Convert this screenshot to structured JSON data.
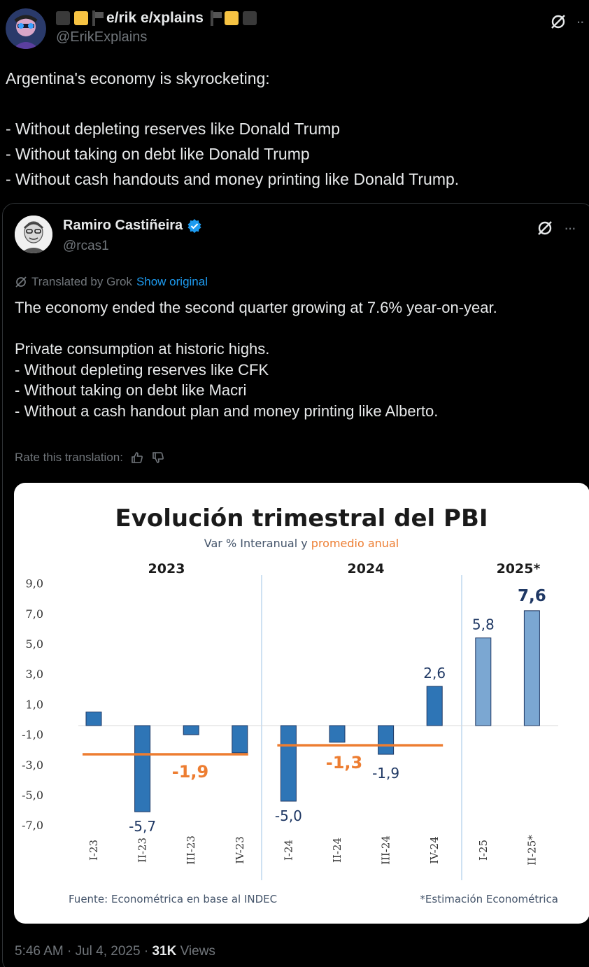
{
  "author": {
    "display_name": "e/rik e/xplains",
    "handle": "@ErikExplains",
    "flag_colors": [
      "#f6c343"
    ]
  },
  "tweet": {
    "text": "Argentina's economy is skyrocketing:\n\n- Without depleting reserves like Donald Trump\n- Without taking on debt like Donald Trump\n- Without cash handouts and money printing like Donald Trump."
  },
  "quoted": {
    "display_name": "Ramiro Castiñeira",
    "handle": "@rcas1",
    "translated_label": "Translated by Grok",
    "show_original": "Show original",
    "text": "The economy ended the second quarter growing at 7.6% year-on-year.\n\nPrivate consumption at historic highs.\n- Without depleting reserves like CFK\n- Without taking on debt like Macri\n- Without a cash handout plan and money printing like Alberto.",
    "rate_label": "Rate this translation:",
    "time": "5:46 AM · Jul 4, 2025 · ",
    "views_count": "31K",
    "views_label": " Views"
  },
  "icons": [
    "grok-icon",
    "more-icon",
    "verified-icon",
    "thumbs-up-icon",
    "thumbs-down-icon"
  ],
  "colors": {
    "bar_blue": "#2e75b6",
    "bar_light": "#7ba7d2",
    "avg_orange": "#ed7d31",
    "accent": "#1d9bf0"
  },
  "chart_data": {
    "type": "bar",
    "title": "Evolución trimestral del PBI",
    "subtitle_prefix": "Var % Interanual y ",
    "subtitle_highlight": "promedio anual",
    "categories": [
      "I-23",
      "II-23",
      "III-23",
      "IV-23",
      "I-24",
      "II-24",
      "III-24",
      "IV-24",
      "I-25",
      "II-25*"
    ],
    "values": [
      0.9,
      -5.7,
      -0.6,
      -1.8,
      -5.0,
      -1.1,
      -1.9,
      2.6,
      5.8,
      7.6
    ],
    "data_labels": [
      "",
      "-5,7",
      "",
      "",
      "-5,0",
      "",
      "-1,9",
      "2,6",
      "5,8",
      "7,6"
    ],
    "estimate_flags": [
      false,
      false,
      false,
      false,
      false,
      false,
      false,
      false,
      true,
      true
    ],
    "year_labels": [
      "2023",
      "2024",
      "2025*"
    ],
    "averages": [
      {
        "label": "-1,9",
        "value": -1.9
      },
      {
        "label": "-1,3",
        "value": -1.3
      }
    ],
    "y_ticks": [
      "9,0",
      "7,0",
      "5,0",
      "3,0",
      "1,0",
      "-1,0",
      "-3,0",
      "-5,0",
      "-7,0"
    ],
    "ylim": [
      -7,
      9
    ],
    "source": "Fuente: Econométrica en base al INDEC",
    "note": "*Estimación Econométrica"
  }
}
